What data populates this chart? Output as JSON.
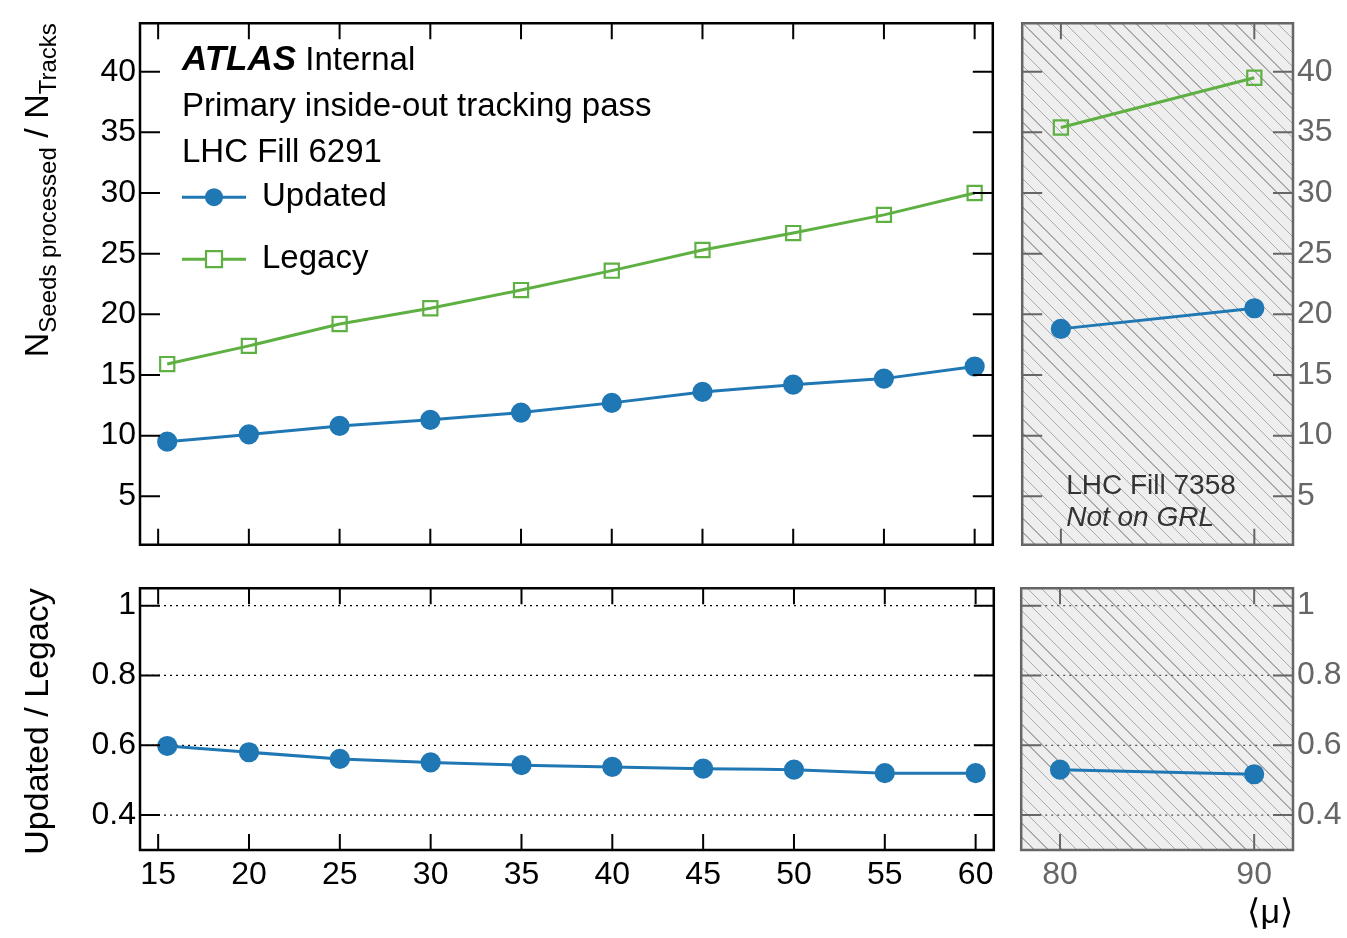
{
  "chart_data": [
    {
      "type": "line",
      "ylabel": "N$_{Seeds processed}$ / N$_{Tracks}$",
      "annotations": [
        "ATLAS Internal",
        "Primary inside-out tracking pass",
        "LHC Fill 6291"
      ],
      "x": [
        15.5,
        20,
        25,
        30,
        35,
        40,
        45,
        50,
        55,
        60
      ],
      "series": [
        {
          "name": "Updated",
          "color": "#1f77b4",
          "marker": "circle",
          "values": [
            9.5,
            10.1,
            10.8,
            11.3,
            11.9,
            12.7,
            13.6,
            14.2,
            14.7,
            15.7
          ]
        },
        {
          "name": "Legacy",
          "color": "#5fb043",
          "marker": "square",
          "values": [
            15.9,
            17.4,
            19.2,
            20.5,
            22.0,
            23.6,
            25.3,
            26.7,
            28.2,
            30.0
          ]
        }
      ],
      "xlim": [
        14,
        61
      ],
      "xticks": [
        15,
        20,
        25,
        30,
        35,
        40,
        45,
        50,
        55,
        60
      ],
      "ylim": [
        1,
        44
      ],
      "yticks": [
        5,
        10,
        15,
        20,
        25,
        30,
        35,
        40
      ],
      "tick_labels": "y",
      "legend": "top left"
    },
    {
      "type": "line",
      "annotations": [
        "LHC Fill 7358",
        "Not on GRL"
      ],
      "x": [
        80,
        90
      ],
      "series": [
        {
          "color": "#1f77b4",
          "marker": "circle",
          "values": [
            18.8,
            20.5
          ]
        },
        {
          "color": "#5fb043",
          "marker": "square",
          "values": [
            35.4,
            39.5
          ]
        }
      ],
      "xlim": [
        78,
        92
      ],
      "xticks": [
        80,
        90
      ],
      "ylim": [
        1,
        44
      ],
      "yticks": [
        5,
        10,
        15,
        20,
        25,
        30,
        35,
        40
      ],
      "tick_labels": "y",
      "bands": [
        {
          "axis": "x",
          "from": 78,
          "to": 92,
          "color": "#aaaaaa"
        }
      ]
    },
    {
      "type": "line",
      "ylabel": "Updated / Legacy",
      "x": [
        15.5,
        20,
        25,
        30,
        35,
        40,
        45,
        50,
        55,
        60
      ],
      "series": [
        {
          "color": "#1f77b4",
          "marker": "circle",
          "values": [
            0.598,
            0.58,
            0.561,
            0.551,
            0.543,
            0.538,
            0.533,
            0.53,
            0.52,
            0.52
          ]
        }
      ],
      "xlim": [
        14,
        61
      ],
      "xticks": [
        15,
        20,
        25,
        30,
        35,
        40,
        45,
        50,
        55,
        60
      ],
      "ylim": [
        0.3,
        1.05
      ],
      "yticks": [
        0.4,
        0.6,
        0.8,
        1
      ],
      "grid": "y"
    },
    {
      "type": "line",
      "xlabel": "⟨μ⟩",
      "x": [
        80,
        90
      ],
      "series": [
        {
          "color": "#1f77b4",
          "marker": "circle",
          "values": [
            0.53,
            0.517
          ]
        }
      ],
      "xlim": [
        78,
        92
      ],
      "xticks": [
        80,
        90
      ],
      "ylim": [
        0.3,
        1.05
      ],
      "yticks": [
        0.4,
        0.6,
        0.8,
        1
      ],
      "grid": "y",
      "bands": [
        {
          "axis": "x",
          "from": 78,
          "to": 92,
          "color": "#aaaaaa"
        }
      ]
    }
  ]
}
